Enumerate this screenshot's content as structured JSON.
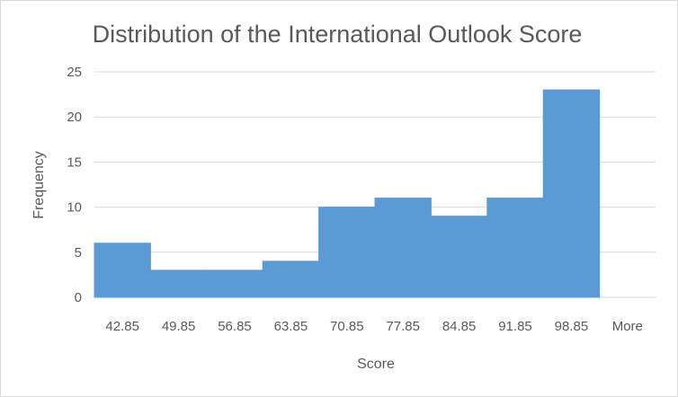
{
  "chart_data": {
    "type": "bar",
    "title": "Distribution of the International Outlook Score",
    "xlabel": "Score",
    "ylabel": "Frequency",
    "categories": [
      "42.85",
      "49.85",
      "56.85",
      "63.85",
      "70.85",
      "77.85",
      "84.85",
      "91.85",
      "98.85",
      "More"
    ],
    "values": [
      6,
      3,
      3,
      4,
      10,
      11,
      9,
      11,
      23,
      0
    ],
    "ylim": [
      0,
      25
    ],
    "yticks": [
      0,
      5,
      10,
      15,
      20,
      25
    ],
    "grid": true,
    "legend": "none",
    "bar_color": "#5b9bd5",
    "gap": 0
  }
}
